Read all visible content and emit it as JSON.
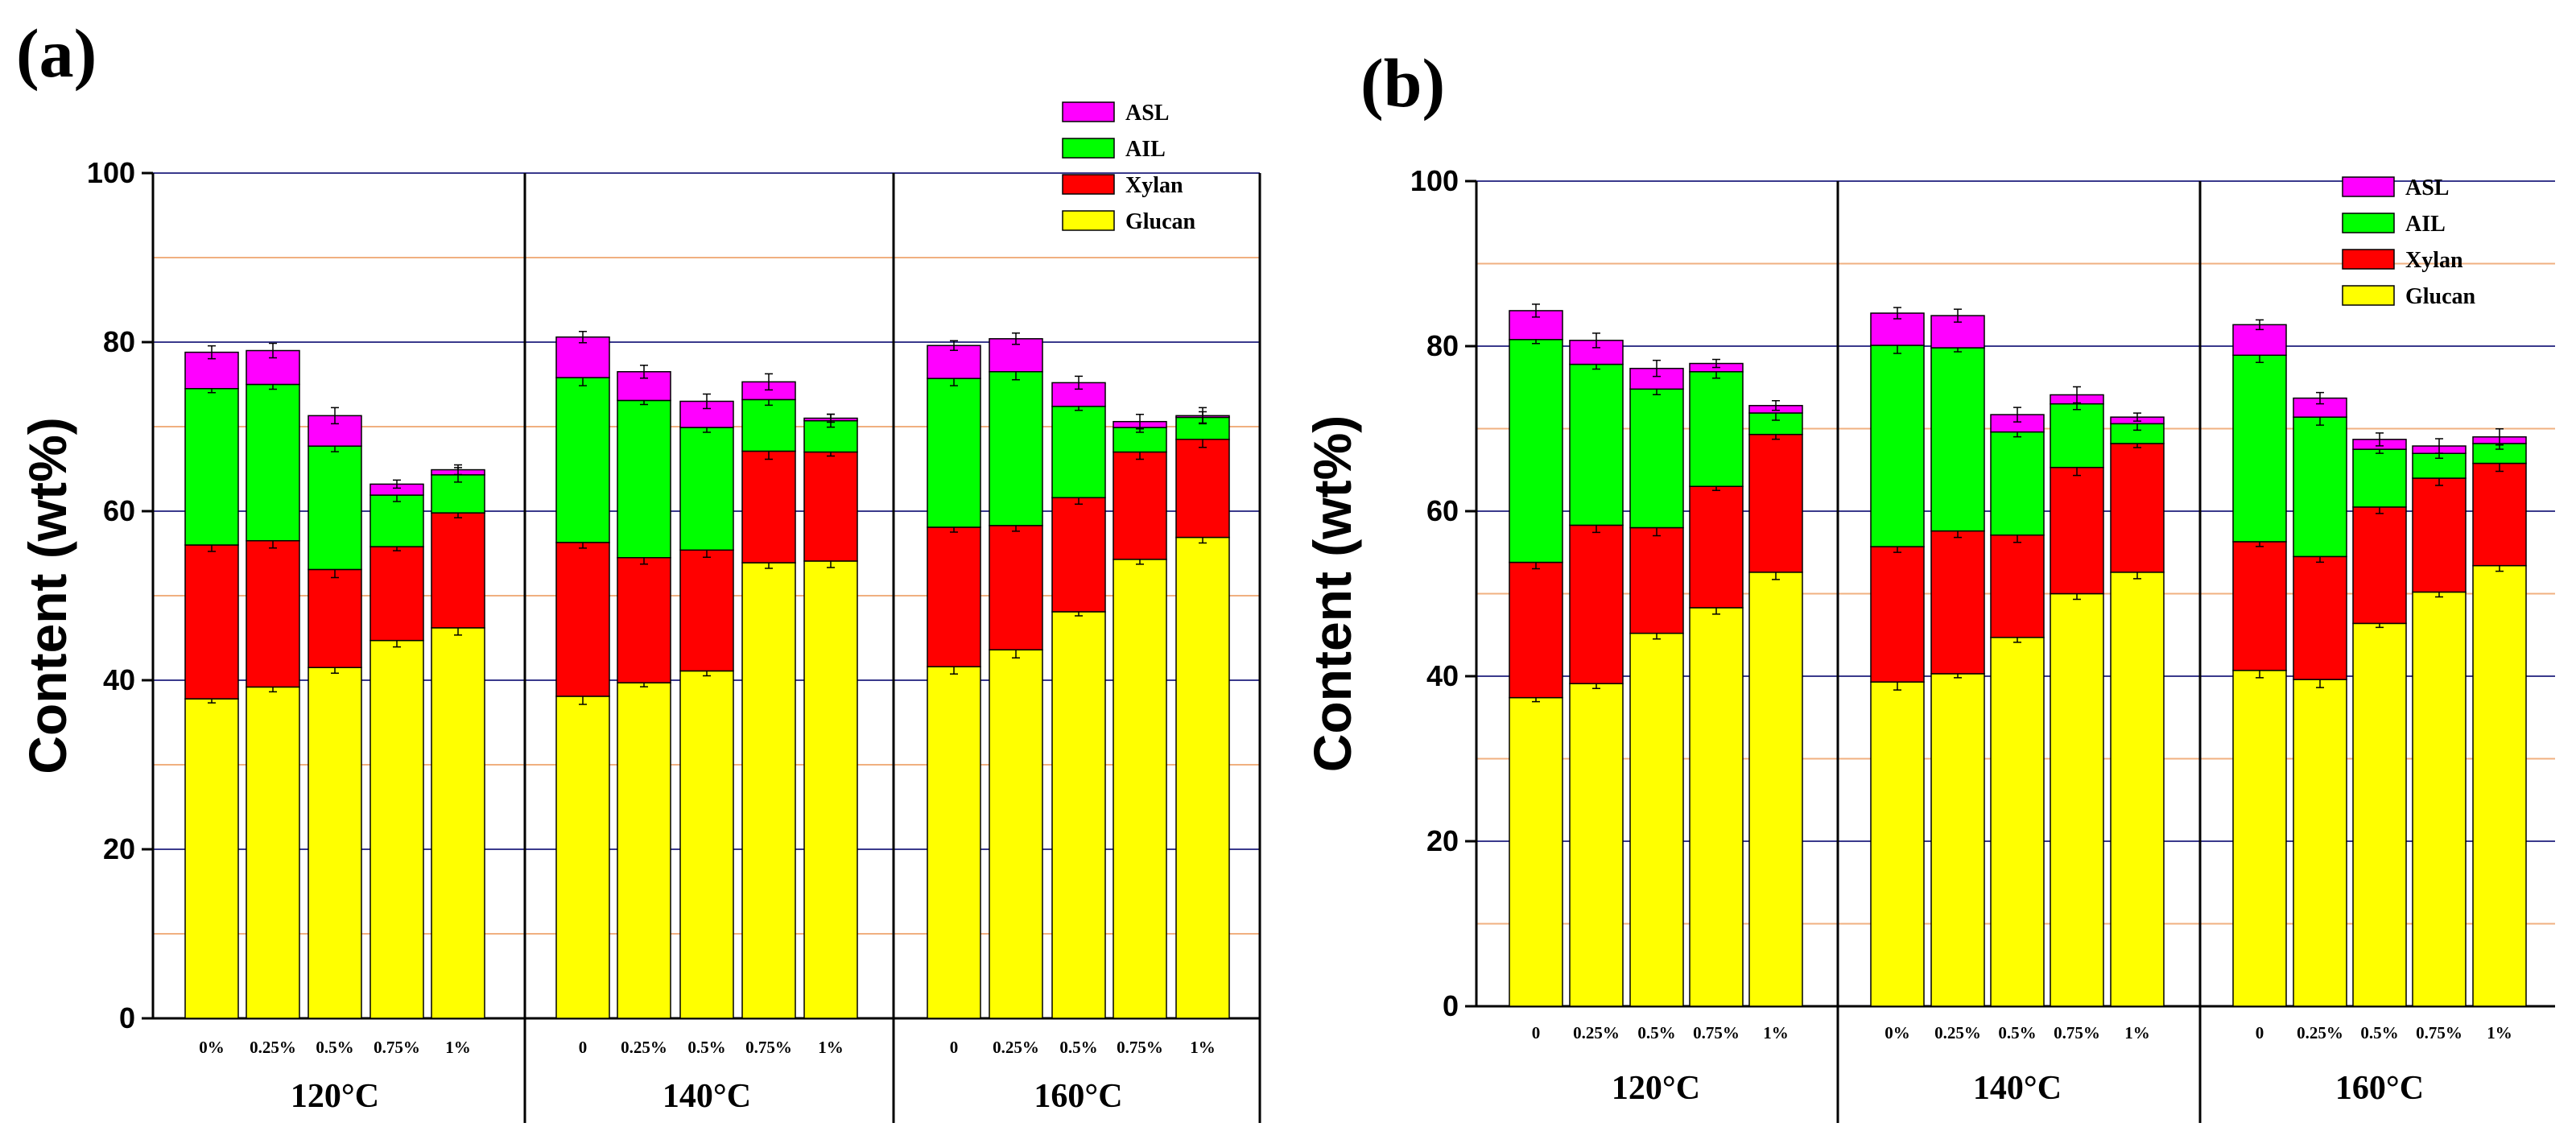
{
  "chart_data": [
    {
      "panel_label": "(a)",
      "type": "bar",
      "stacked": true,
      "ylabel": "Content (wt%)",
      "ylim": [
        0,
        100
      ],
      "yticks": [
        0,
        20,
        40,
        60,
        80,
        100
      ],
      "groups": [
        {
          "label": "120°C",
          "categories": [
            "0%",
            "0.25%",
            "0.5%",
            "0.75%",
            "1%"
          ]
        },
        {
          "label": "140°C",
          "categories": [
            "0",
            "0.25%",
            "0.5%",
            "0.75%",
            "1%"
          ]
        },
        {
          "label": "160°C",
          "categories": [
            "0",
            "0.25%",
            "0.5%",
            "0.75%",
            "1%"
          ]
        }
      ],
      "legend": [
        "ASL",
        "AIL",
        "Xylan",
        "Glucan"
      ],
      "series": [
        {
          "name": "Glucan",
          "color": "#ffff00",
          "values": [
            37.8,
            39.2,
            41.5,
            44.7,
            46.2,
            38.1,
            39.7,
            41.1,
            53.9,
            54.1,
            41.6,
            43.6,
            48.1,
            54.3,
            56.9
          ]
        },
        {
          "name": "Xylan",
          "color": "#ff0000",
          "values": [
            18.2,
            17.3,
            11.6,
            11.1,
            13.6,
            18.2,
            14.8,
            14.3,
            13.2,
            12.9,
            16.5,
            14.7,
            13.5,
            12.7,
            11.6
          ]
        },
        {
          "name": "AIL",
          "color": "#00ff00",
          "values": [
            18.5,
            18.5,
            14.6,
            6.1,
            4.5,
            19.5,
            18.6,
            14.5,
            6.1,
            3.7,
            17.6,
            18.2,
            10.8,
            2.9,
            2.6
          ]
        },
        {
          "name": "ASL",
          "color": "#ff00ff",
          "values": [
            4.3,
            4.0,
            3.6,
            1.3,
            0.6,
            4.8,
            3.4,
            3.1,
            2.1,
            0.3,
            3.9,
            3.9,
            2.8,
            0.7,
            0.2
          ]
        }
      ]
    },
    {
      "panel_label": "(b)",
      "type": "bar",
      "stacked": true,
      "ylabel": "Content (wt%)",
      "ylim": [
        0,
        100
      ],
      "yticks": [
        0,
        20,
        40,
        60,
        80,
        100
      ],
      "groups": [
        {
          "label": "120°C",
          "categories": [
            "0",
            "0.25%",
            "0.5%",
            "0.75%",
            "1%"
          ]
        },
        {
          "label": "140°C",
          "categories": [
            "0%",
            "0.25%",
            "0.5%",
            "0.75%",
            "1%"
          ]
        },
        {
          "label": "160°C",
          "categories": [
            "0",
            "0.25%",
            "0.5%",
            "0.75%",
            "1%"
          ]
        }
      ],
      "legend": [
        "ASL",
        "AIL",
        "Xylan",
        "Glucan"
      ],
      "series": [
        {
          "name": "Glucan",
          "color": "#ffff00",
          "values": [
            37.4,
            39.1,
            45.2,
            48.3,
            52.6,
            39.3,
            40.3,
            44.7,
            50.0,
            52.6,
            40.7,
            39.6,
            46.4,
            50.2,
            53.4
          ]
        },
        {
          "name": "Xylan",
          "color": "#ff0000",
          "values": [
            16.4,
            19.2,
            12.8,
            14.7,
            16.7,
            16.4,
            17.3,
            12.4,
            15.3,
            15.6,
            15.6,
            14.9,
            14.1,
            13.8,
            12.4
          ]
        },
        {
          "name": "AIL",
          "color": "#00ff00",
          "values": [
            27.0,
            19.5,
            16.8,
            13.9,
            2.6,
            24.4,
            22.2,
            12.5,
            7.7,
            2.4,
            22.6,
            16.9,
            7.0,
            3.0,
            2.4
          ]
        },
        {
          "name": "ASL",
          "color": "#ff00ff",
          "values": [
            3.5,
            2.9,
            2.5,
            1.0,
            0.9,
            3.9,
            3.9,
            2.1,
            1.1,
            0.8,
            3.7,
            2.3,
            1.2,
            0.9,
            0.8
          ]
        }
      ]
    }
  ]
}
